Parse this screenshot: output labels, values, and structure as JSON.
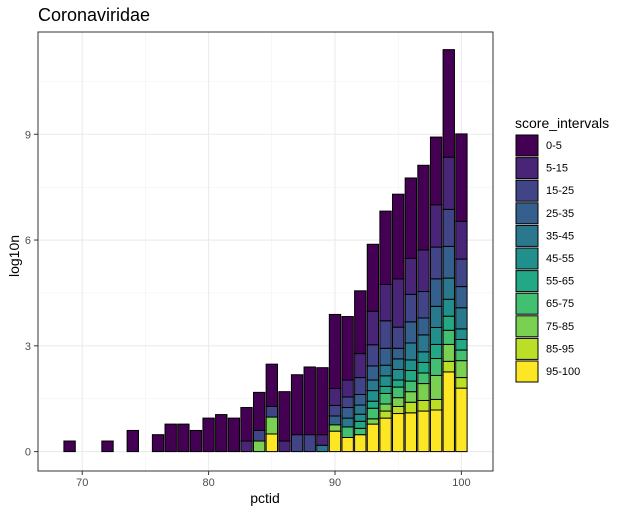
{
  "chart_data": {
    "type": "bar",
    "stacked": true,
    "title": "Coronaviridae",
    "xlabel": "pctid",
    "ylabel": "log10n",
    "xlim": [
      66.5,
      102.5
    ],
    "ylim": [
      -0.55,
      11.9
    ],
    "x_ticks": [
      70,
      80,
      90,
      100
    ],
    "y_ticks": [
      0,
      3,
      6,
      9
    ],
    "grid": true,
    "legend_title": "score_intervals",
    "legend_position": "right",
    "series": [
      {
        "name": "0-5",
        "color": "#440154"
      },
      {
        "name": "5-15",
        "color": "#482576"
      },
      {
        "name": "15-25",
        "color": "#414487"
      },
      {
        "name": "25-35",
        "color": "#35608D"
      },
      {
        "name": "35-45",
        "color": "#2A788E"
      },
      {
        "name": "45-55",
        "color": "#21908C"
      },
      {
        "name": "55-65",
        "color": "#22A884"
      },
      {
        "name": "65-75",
        "color": "#43BF71"
      },
      {
        "name": "75-85",
        "color": "#7AD151"
      },
      {
        "name": "85-95",
        "color": "#BBDF27"
      },
      {
        "name": "95-100",
        "color": "#FDE725"
      }
    ],
    "bars": [
      {
        "x": 69,
        "segments": {
          "0-5": 0.3
        }
      },
      {
        "x": 72,
        "segments": {
          "0-5": 0.3
        }
      },
      {
        "x": 74,
        "segments": {
          "0-5": 0.6
        }
      },
      {
        "x": 76,
        "segments": {
          "0-5": 0.48
        }
      },
      {
        "x": 77,
        "segments": {
          "0-5": 0.78
        }
      },
      {
        "x": 78,
        "segments": {
          "0-5": 0.78
        }
      },
      {
        "x": 79,
        "segments": {
          "0-5": 0.6
        }
      },
      {
        "x": 80,
        "segments": {
          "0-5": 0.95
        }
      },
      {
        "x": 81,
        "segments": {
          "0-5": 1.05
        }
      },
      {
        "x": 82,
        "segments": {
          "0-5": 0.95
        }
      },
      {
        "x": 83,
        "segments": {
          "0-5": 0.95,
          "5-15": 0.3
        }
      },
      {
        "x": 84,
        "segments": {
          "0-5": 1.08,
          "15-25": 0.3,
          "75-85": 0.3
        }
      },
      {
        "x": 85,
        "segments": {
          "0-5": 1.2,
          "15-25": 0.3,
          "75-85": 0.48,
          "95-100": 0.5
        }
      },
      {
        "x": 86,
        "segments": {
          "0-5": 1.4,
          "5-15": 0.3
        }
      },
      {
        "x": 87,
        "segments": {
          "0-5": 1.7,
          "15-25": 0.48
        }
      },
      {
        "x": 88,
        "segments": {
          "0-5": 1.92,
          "15-25": 0.48
        }
      },
      {
        "x": 89,
        "segments": {
          "0-5": 1.9,
          "5-15": 0.3,
          "35-45": 0.18
        }
      },
      {
        "x": 90,
        "segments": {
          "0-5": 2.1,
          "5-15": 0.48,
          "15-25": 0.3,
          "25-35": 0.25,
          "75-85": 0.18,
          "95-100": 0.58
        }
      },
      {
        "x": 91,
        "segments": {
          "0-5": 1.8,
          "5-15": 0.48,
          "15-25": 0.3,
          "25-35": 0.3,
          "35-45": 0.25,
          "65-75": 0.3,
          "95-100": 0.4
        }
      },
      {
        "x": 92,
        "segments": {
          "0-5": 1.78,
          "5-15": 0.68,
          "15-25": 0.48,
          "25-35": 0.3,
          "35-45": 0.26,
          "45-55": 0.2,
          "55-65": 0.2,
          "65-75": 0.18,
          "95-100": 0.48
        }
      },
      {
        "x": 93,
        "segments": {
          "0-5": 1.9,
          "5-15": 0.95,
          "15-25": 0.6,
          "25-35": 0.4,
          "35-45": 0.3,
          "45-55": 0.3,
          "55-65": 0.2,
          "65-75": 0.3,
          "75-85": 0.15,
          "95-100": 0.78
        }
      },
      {
        "x": 94,
        "segments": {
          "0-5": 2.08,
          "5-15": 1.03,
          "15-25": 0.78,
          "25-35": 0.48,
          "35-45": 0.3,
          "45-55": 0.3,
          "55-65": 0.2,
          "65-75": 0.3,
          "75-85": 0.2,
          "85-95": 0.2,
          "95-100": 0.95
        }
      },
      {
        "x": 95,
        "segments": {
          "0-5": 2.4,
          "5-15": 1.37,
          "15-25": 0.6,
          "25-35": 0.3,
          "35-45": 0.3,
          "45-55": 0.3,
          "55-65": 0.2,
          "65-75": 0.3,
          "75-85": 0.25,
          "85-95": 0.2,
          "95-100": 1.08
        }
      },
      {
        "x": 96,
        "segments": {
          "0-5": 2.28,
          "5-15": 1.02,
          "15-25": 0.78,
          "25-35": 0.6,
          "35-45": 0.48,
          "45-55": 0.3,
          "55-65": 0.3,
          "65-75": 0.3,
          "75-85": 0.3,
          "85-95": 0.3,
          "95-100": 1.1
        }
      },
      {
        "x": 97,
        "segments": {
          "0-5": 2.4,
          "5-15": 1.18,
          "15-25": 0.75,
          "25-35": 0.48,
          "35-45": 0.48,
          "45-55": 0.3,
          "55-65": 0.3,
          "65-75": 0.3,
          "75-85": 0.48,
          "85-95": 0.3,
          "95-100": 1.15
        }
      },
      {
        "x": 98,
        "segments": {
          "0-5": 1.92,
          "5-15": 1.2,
          "15-25": 0.9,
          "25-35": 0.78,
          "35-45": 0.6,
          "45-55": 0.48,
          "55-65": 0.4,
          "65-75": 0.48,
          "75-85": 0.68,
          "85-95": 0.3,
          "95-100": 1.18
        }
      },
      {
        "x": 99,
        "segments": {
          "0-5": 3.05,
          "5-15": 1.48,
          "15-25": 1.05,
          "25-35": 0.9,
          "35-45": 0.6,
          "45-55": 0.48,
          "55-65": 0.4,
          "65-75": 0.4,
          "75-85": 0.48,
          "85-95": 0.3,
          "95-100": 2.26
        }
      },
      {
        "x": 100,
        "segments": {
          "0-5": 2.48,
          "5-15": 1.07,
          "15-25": 0.78,
          "25-35": 0.6,
          "35-45": 0.6,
          "45-55": 0.3,
          "55-65": 0.3,
          "65-75": 0.3,
          "75-85": 0.48,
          "85-95": 0.3,
          "95-100": 1.8
        }
      }
    ]
  }
}
